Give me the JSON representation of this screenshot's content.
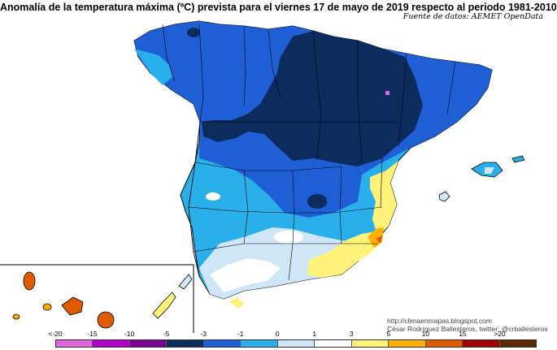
{
  "title": "Anomalía de la temperatura máxima (ºC) prevista para el viernes 17 de mayo de 2019 respecto al periodo 1981-2010",
  "source": "Fuente de datos: AEMET OpenData",
  "credits": {
    "blog": "http://climaenmapas.blogspot.com",
    "author": "César Rodríguez Ballesteros, twitter: @crballesteros"
  },
  "legend": {
    "ticks": [
      "<-20",
      "-15",
      "-10",
      "-5",
      "-3",
      "-1",
      "0",
      "1",
      "3",
      "5",
      "10",
      "15",
      ">20"
    ],
    "colors": [
      "#e066e0",
      "#b000c8",
      "#7a0094",
      "#0c2c5e",
      "#1f5fd6",
      "#29b0ea",
      "#cfe6f7",
      "#ffffff",
      "#fff27a",
      "#ffb000",
      "#e05a00",
      "#a00000",
      "#5a2a00"
    ]
  }
}
